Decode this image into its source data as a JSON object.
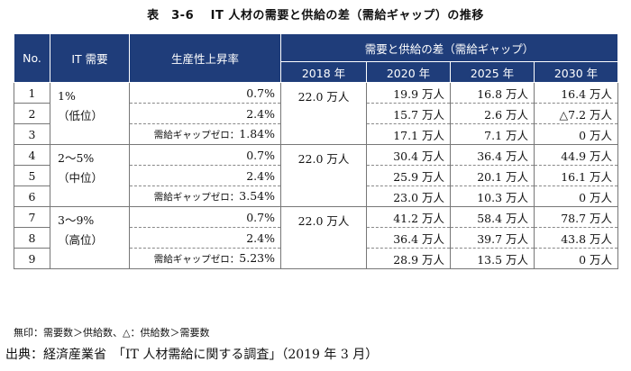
{
  "title": "表　3-6　 IT 人材の需要と供給の差（需給ギャップ）の推移",
  "headers": {
    "no": "No.",
    "demand": "IT 需要",
    "productivity": "生産性上昇率",
    "gap_group": "需要と供給の差（需給ギャップ）",
    "years": [
      "2018 年",
      "2020 年",
      "2025 年",
      "2030 年"
    ]
  },
  "groups": [
    {
      "demand_line1": "1%",
      "demand_line2": "（低位）",
      "value_2018": "22.0 万人",
      "rows": [
        {
          "no": "1",
          "rate": "0.7%",
          "rate_prefix": "",
          "y2020": "19.9 万人",
          "y2025": "16.8 万人",
          "y2030": "16.4 万人"
        },
        {
          "no": "2",
          "rate": "2.4%",
          "rate_prefix": "",
          "y2020": "15.7 万人",
          "y2025": "2.6 万人",
          "y2030": "△7.2 万人"
        },
        {
          "no": "3",
          "rate": "1.84%",
          "rate_prefix": "需給ギャップゼロ：",
          "y2020": "17.1 万人",
          "y2025": "7.1 万人",
          "y2030": "0 万人"
        }
      ]
    },
    {
      "demand_line1": "2～5%",
      "demand_line2": "（中位）",
      "value_2018": "22.0 万人",
      "rows": [
        {
          "no": "4",
          "rate": "0.7%",
          "rate_prefix": "",
          "y2020": "30.4 万人",
          "y2025": "36.4 万人",
          "y2030": "44.9 万人"
        },
        {
          "no": "5",
          "rate": "2.4%",
          "rate_prefix": "",
          "y2020": "25.9 万人",
          "y2025": "20.1 万人",
          "y2030": "16.1 万人"
        },
        {
          "no": "6",
          "rate": "3.54%",
          "rate_prefix": "需給ギャップゼロ：",
          "y2020": "23.0 万人",
          "y2025": "10.3 万人",
          "y2030": "0 万人"
        }
      ]
    },
    {
      "demand_line1": "3～9%",
      "demand_line2": "（高位）",
      "value_2018": "22.0 万人",
      "rows": [
        {
          "no": "7",
          "rate": "0.7%",
          "rate_prefix": "",
          "y2020": "41.2 万人",
          "y2025": "58.4 万人",
          "y2030": "78.7 万人"
        },
        {
          "no": "8",
          "rate": "2.4%",
          "rate_prefix": "",
          "y2020": "36.4 万人",
          "y2025": "39.7 万人",
          "y2030": "43.8 万人"
        },
        {
          "no": "9",
          "rate": "5.23%",
          "rate_prefix": "需給ギャップゼロ：",
          "y2020": "28.9 万人",
          "y2025": "13.5 万人",
          "y2030": "0 万人"
        }
      ]
    }
  ],
  "note": "無印：需要数＞供給数、△：供給数＞需要数",
  "source": "出典：経済産業省　「IT 人材需給に関する調査」（2019 年 3 月）",
  "colors": {
    "header_bg": "#1f3d7a",
    "header_text": "#ffffff"
  }
}
